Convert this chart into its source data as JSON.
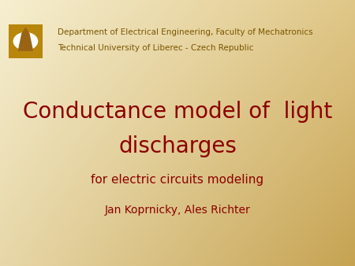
{
  "title_line1": "Conductance model of  light",
  "title_line2": "discharges",
  "subtitle": "for electric circuits modeling",
  "authors": "Jan Koprnicky, Ales Richter",
  "dept_line1": "Department of Electrical Engineering, Faculty of Mechatronics",
  "dept_line2": "Technical University of Liberec - Czech Republic",
  "title_color": "#8B0000",
  "subtitle_color": "#8B0000",
  "authors_color": "#8B0000",
  "dept_color": "#7a5500",
  "title_fontsize": 20,
  "subtitle_fontsize": 11,
  "authors_fontsize": 10,
  "dept_fontsize": 7.5,
  "logo_border_color": "#b8860b",
  "logo_inner_color": "#ffffff",
  "logo_symbol_color": "#996515",
  "bg_topleft": [
    0.965,
    0.937,
    0.816
  ],
  "bg_topright": [
    0.878,
    0.78,
    0.533
  ],
  "bg_botleft": [
    0.906,
    0.843,
    0.659
  ],
  "bg_botright": [
    0.776,
    0.639,
    0.322
  ]
}
